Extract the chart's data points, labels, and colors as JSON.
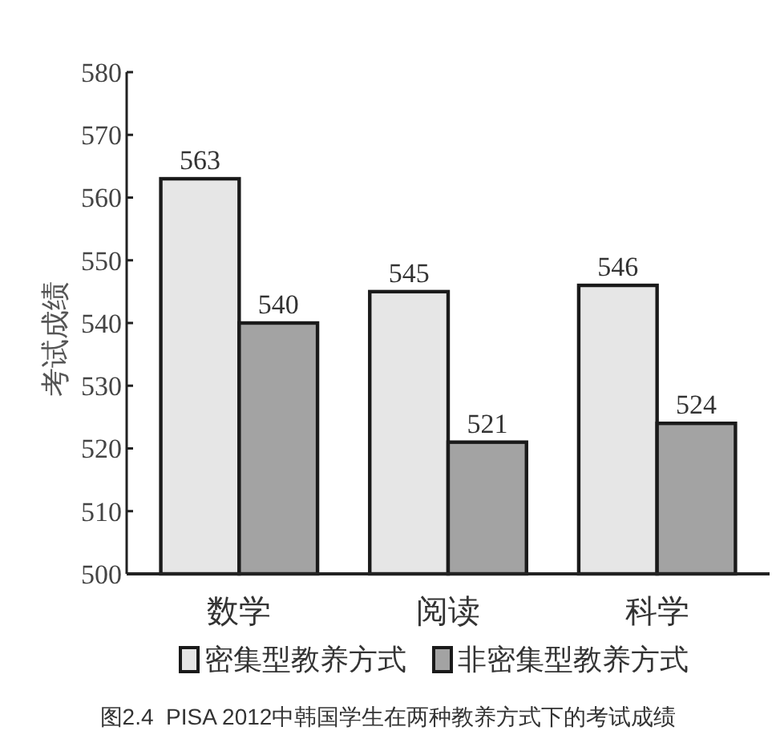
{
  "chart_data": {
    "type": "bar",
    "categories": [
      "数学",
      "阅读",
      "科学"
    ],
    "series": [
      {
        "name": "密集型教养方式",
        "color": "#e6e6e6",
        "values": [
          563,
          545,
          546
        ]
      },
      {
        "name": "非密集型教养方式",
        "color": "#a3a3a3",
        "values": [
          540,
          521,
          524
        ]
      }
    ],
    "ylim": [
      500,
      580
    ],
    "yticks": [
      500,
      510,
      520,
      530,
      540,
      550,
      560,
      570,
      580
    ],
    "ylabel": "考试成绩",
    "data_labels": true,
    "legend": "bottom",
    "annotations": [
      "图2.4  PISA 2012中韩国学生在两种教养方式下的考试成绩"
    ]
  }
}
